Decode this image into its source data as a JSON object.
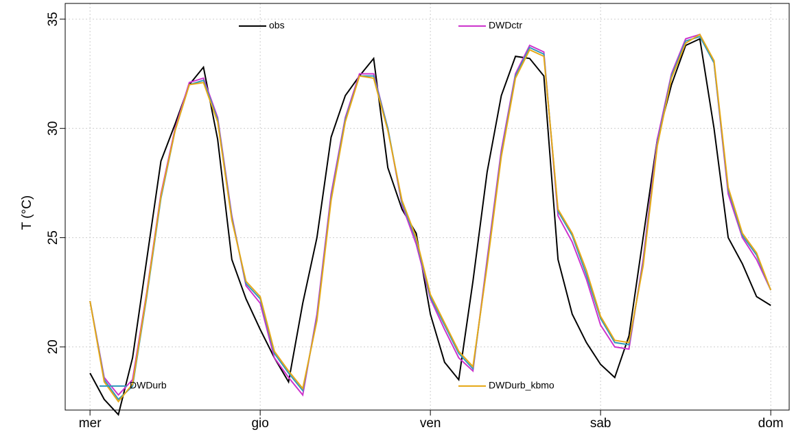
{
  "chart_data": {
    "type": "line",
    "y_label": "T (°C)",
    "x": [
      0,
      2,
      4,
      6,
      8,
      10,
      12,
      14,
      16,
      18,
      20,
      22,
      24,
      26,
      28,
      30,
      32,
      34,
      36,
      38,
      40,
      42,
      44,
      46,
      48,
      50,
      52,
      54,
      56,
      58,
      60,
      62,
      64,
      66,
      68,
      70,
      72,
      74,
      76,
      78,
      80,
      82,
      84,
      86,
      88,
      90,
      92,
      94,
      96
    ],
    "xlim": [
      -3.5,
      98.6
    ],
    "xticks": [
      {
        "value": 0,
        "label": "mer"
      },
      {
        "value": 24,
        "label": "gio"
      },
      {
        "value": 48,
        "label": "ven"
      },
      {
        "value": 72,
        "label": "sab"
      },
      {
        "value": 96,
        "label": "dom"
      }
    ],
    "ylim": [
      17.11,
      35.72
    ],
    "yticks": [
      20,
      25,
      30,
      35
    ],
    "grid": true,
    "series": [
      {
        "name": "obs",
        "color": "#000000",
        "values": [
          18.8,
          17.6,
          16.9,
          19.5,
          24,
          28.5,
          30.2,
          32.0,
          32.8,
          29.5,
          24,
          22.2,
          20.8,
          19.5,
          18.4,
          22,
          25,
          29.6,
          31.5,
          32.4,
          33.2,
          28.2,
          26.3,
          25.2,
          21.5,
          19.3,
          18.5,
          23,
          28,
          31.5,
          33.3,
          33.2,
          32.4,
          24,
          21.5,
          20.2,
          19.2,
          18.6,
          20.5,
          25,
          29.5,
          32,
          33.8,
          34.1,
          30,
          25,
          23.8,
          22.3,
          21.9
        ]
      },
      {
        "name": "DWDctr",
        "color": "#cc33cc",
        "values": [
          22.1,
          18.6,
          17.8,
          18.5,
          22.5,
          27,
          30,
          32.1,
          32.3,
          30.5,
          26,
          22.8,
          22.0,
          19.5,
          18.6,
          17.8,
          21.5,
          27,
          30.5,
          32.5,
          32.5,
          30,
          26.5,
          24.7,
          22.2,
          20.8,
          19.5,
          18.9,
          24,
          29,
          32.5,
          33.8,
          33.5,
          26,
          24.8,
          23.1,
          21.0,
          20.0,
          19.9,
          24,
          29.5,
          32.5,
          34.1,
          34.3,
          33,
          27,
          25,
          24,
          22.6
        ]
      },
      {
        "name": "DWDurb",
        "color": "#3399bb",
        "values": [
          22.1,
          18.5,
          17.6,
          18.2,
          22.3,
          26.8,
          29.9,
          32.0,
          32.2,
          30.4,
          25.9,
          22.9,
          22.2,
          19.7,
          18.8,
          18.0,
          21.3,
          26.8,
          30.4,
          32.4,
          32.4,
          30,
          26.6,
          24.9,
          22.3,
          21.0,
          19.7,
          19.0,
          23.8,
          28.8,
          32.4,
          33.7,
          33.4,
          26.2,
          25.1,
          23.3,
          21.3,
          20.2,
          20.1,
          23.8,
          29.3,
          32.4,
          34.0,
          34.2,
          33,
          27.2,
          25.1,
          24.2,
          22.6
        ]
      },
      {
        "name": "DWDurb_kbmo",
        "color": "#e6a817",
        "values": [
          22.1,
          18.4,
          17.5,
          18.3,
          22.4,
          26.9,
          29.9,
          32.0,
          32.1,
          30.3,
          25.8,
          23.0,
          22.3,
          19.8,
          18.9,
          18.1,
          21.2,
          26.7,
          30.3,
          32.4,
          32.3,
          29.9,
          26.7,
          25.0,
          22.4,
          21.1,
          19.8,
          19.1,
          23.7,
          28.7,
          32.3,
          33.6,
          33.3,
          26.3,
          25.2,
          23.5,
          21.4,
          20.3,
          20.2,
          23.7,
          29.2,
          32.3,
          33.9,
          34.3,
          33.1,
          27.3,
          25.2,
          24.3,
          22.6
        ]
      }
    ]
  }
}
